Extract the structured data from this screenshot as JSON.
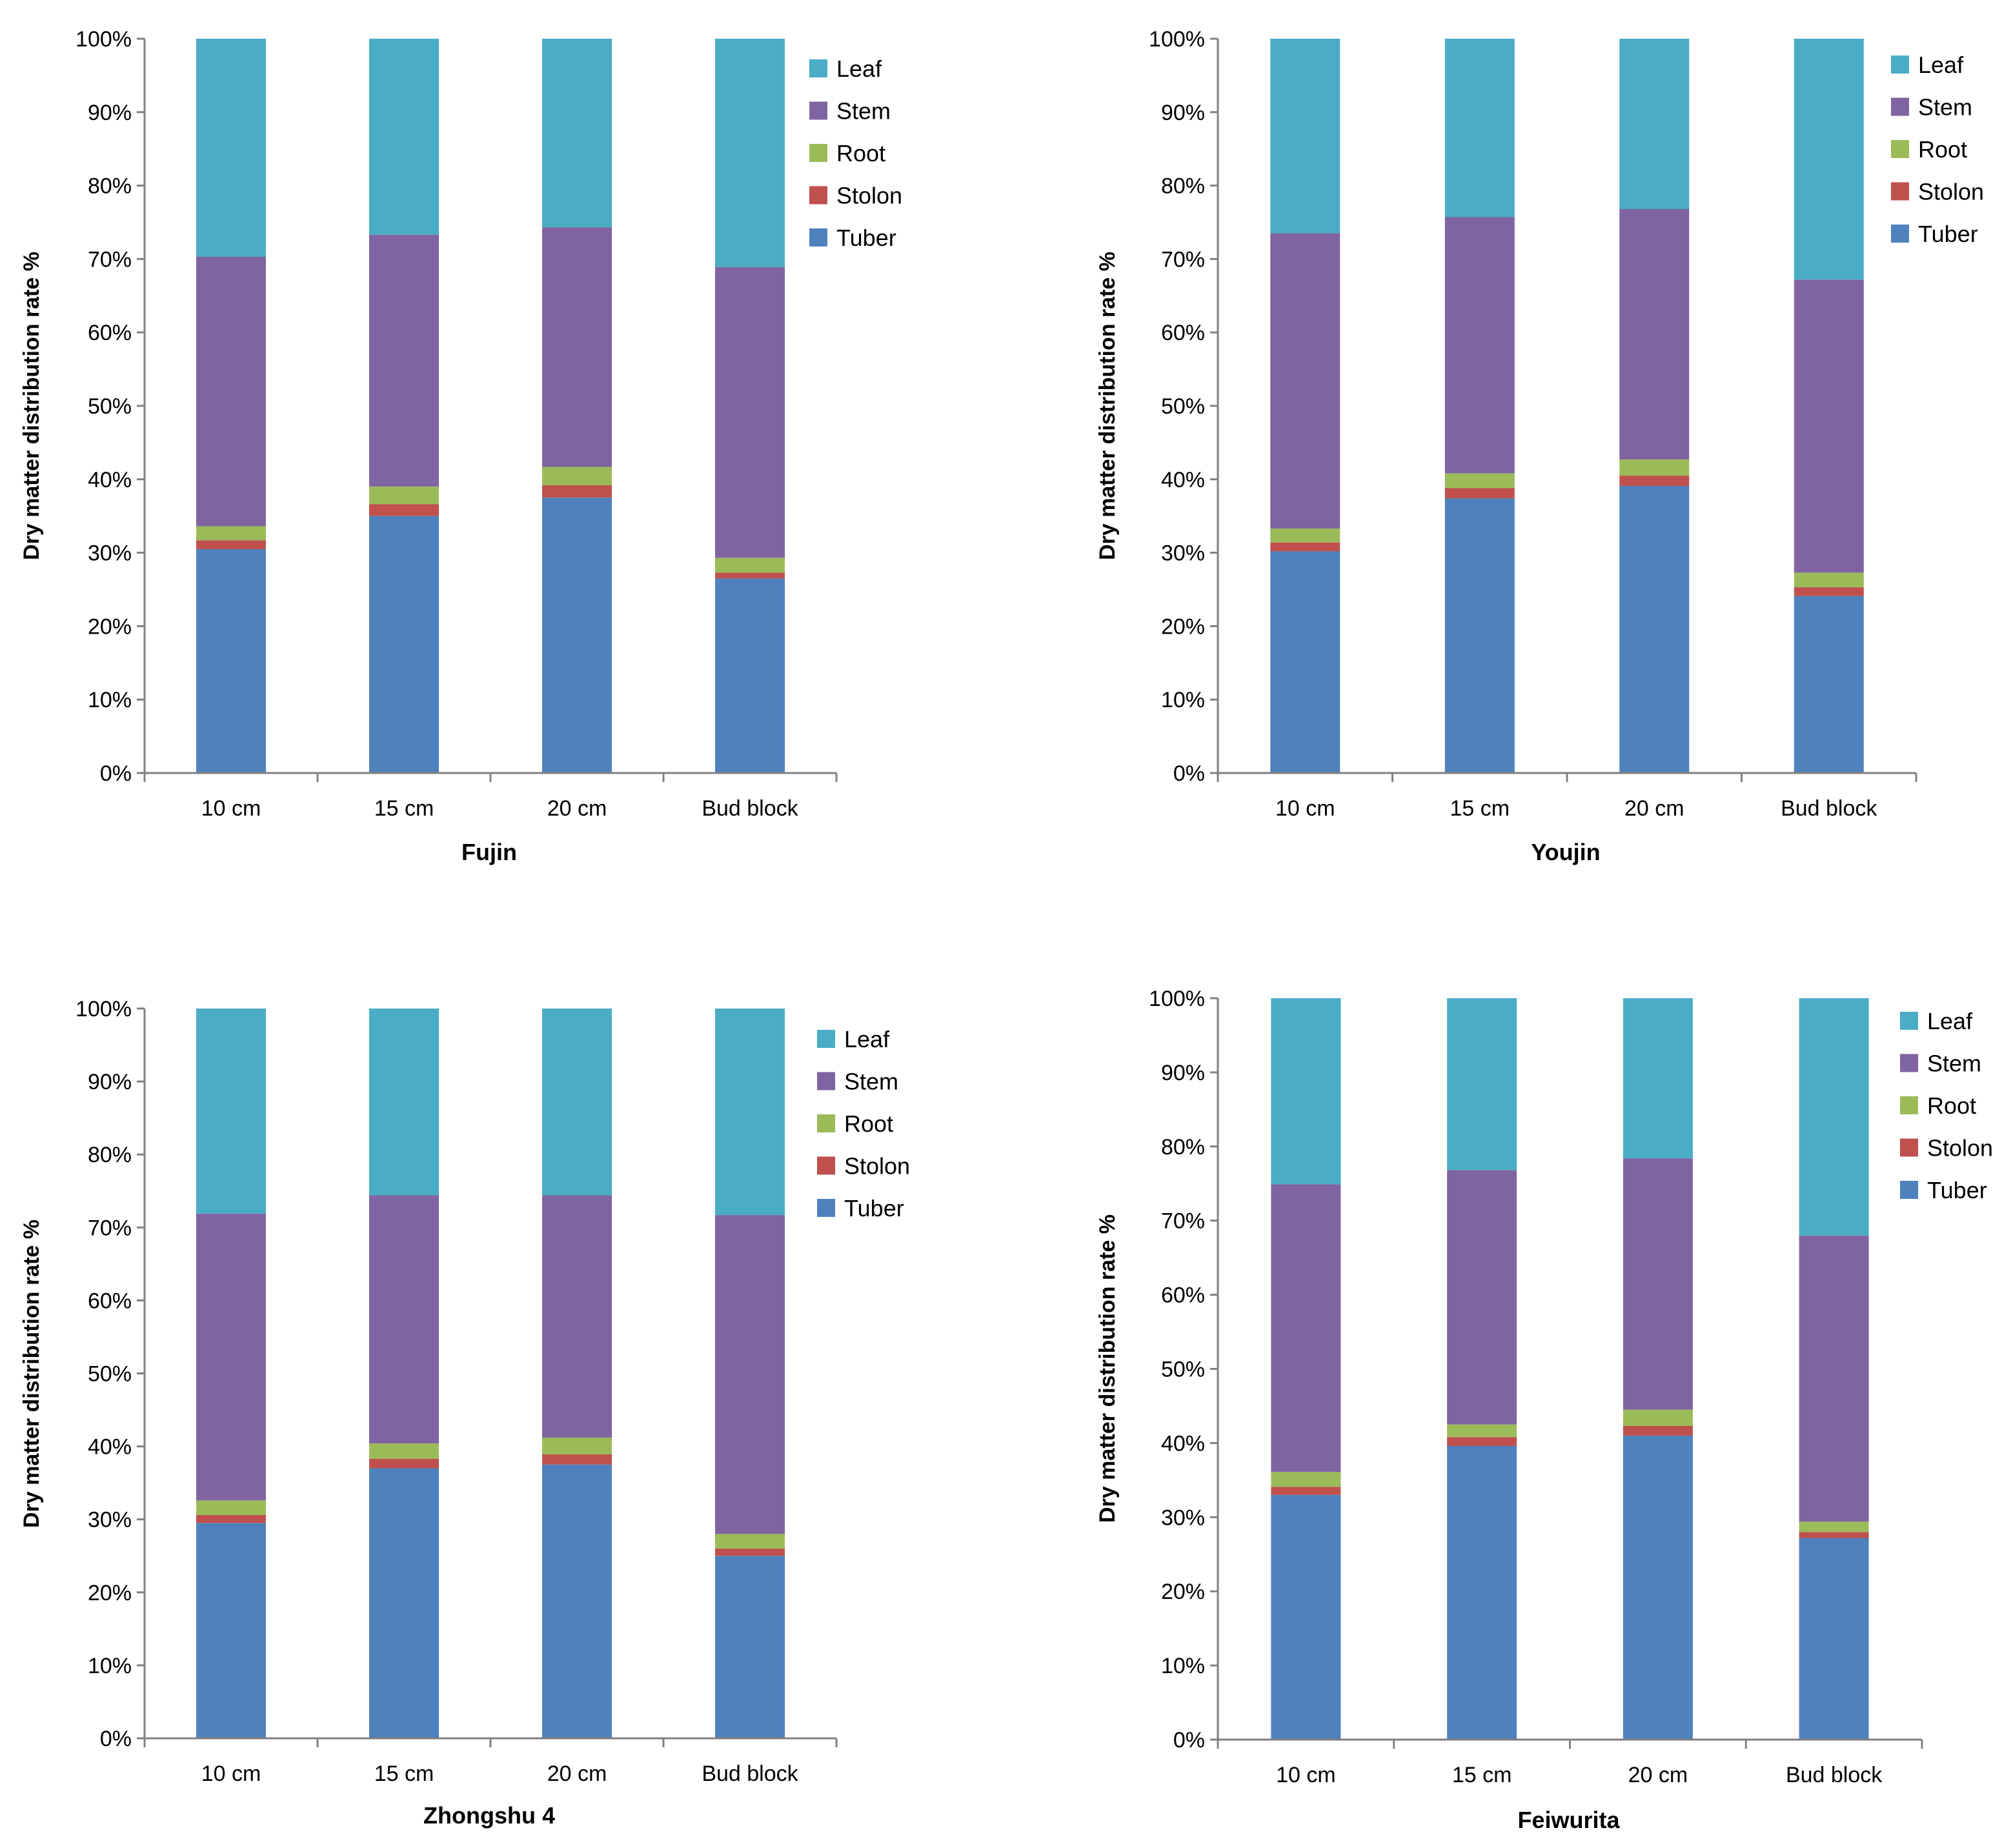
{
  "colors": {
    "Tuber": "#4f81bd",
    "Stolon": "#c0504d",
    "Root": "#9bbb59",
    "Stem": "#8064a2",
    "Leaf": "#4bacc6",
    "axis": "#808080"
  },
  "chart_data": [
    {
      "type": "bar",
      "stacked": true,
      "title": "Fujin",
      "xlabel": "Fujin",
      "ylabel": "Dry matter distribution rate %",
      "categories": [
        "10 cm",
        "15 cm",
        "20 cm",
        "Bud block"
      ],
      "yticks": [
        "0%",
        "10%",
        "20%",
        "30%",
        "40%",
        "50%",
        "60%",
        "70%",
        "80%",
        "90%",
        "100%"
      ],
      "ylim": [
        0,
        100
      ],
      "legend_position": "top-right",
      "legend_order": [
        "Leaf",
        "Stem",
        "Root",
        "Stolon",
        "Tuber"
      ],
      "series": [
        {
          "name": "Tuber",
          "values": [
            30.5,
            35.0,
            37.5,
            26.5
          ]
        },
        {
          "name": "Stolon",
          "values": [
            1.2,
            1.6,
            1.7,
            0.8
          ]
        },
        {
          "name": "Root",
          "values": [
            1.9,
            2.4,
            2.5,
            2.0
          ]
        },
        {
          "name": "Stem",
          "values": [
            36.7,
            34.3,
            32.6,
            39.6
          ]
        },
        {
          "name": "Leaf",
          "values": [
            29.7,
            26.7,
            25.7,
            31.1
          ]
        }
      ]
    },
    {
      "type": "bar",
      "stacked": true,
      "title": "Youjin",
      "xlabel": "Youjin",
      "ylabel": "Dry matter distribution rate %",
      "categories": [
        "10 cm",
        "15 cm",
        "20 cm",
        "Bud block"
      ],
      "yticks": [
        "0%",
        "10%",
        "20%",
        "30%",
        "40%",
        "50%",
        "60%",
        "70%",
        "80%",
        "90%",
        "100%"
      ],
      "ylim": [
        0,
        100
      ],
      "legend_position": "top-right",
      "legend_order": [
        "Leaf",
        "Stem",
        "Root",
        "Stolon",
        "Tuber"
      ],
      "series": [
        {
          "name": "Tuber",
          "values": [
            30.2,
            37.4,
            39.1,
            24.1
          ]
        },
        {
          "name": "Stolon",
          "values": [
            1.2,
            1.4,
            1.4,
            1.2
          ]
        },
        {
          "name": "Root",
          "values": [
            1.9,
            2.0,
            2.2,
            2.0
          ]
        },
        {
          "name": "Stem",
          "values": [
            40.2,
            34.9,
            34.1,
            39.9
          ]
        },
        {
          "name": "Leaf",
          "values": [
            26.5,
            24.3,
            23.2,
            32.8
          ]
        }
      ]
    },
    {
      "type": "bar",
      "stacked": true,
      "title": "Zhongshu 4",
      "xlabel": "Zhongshu 4",
      "ylabel": "Dry matter distribution rate %",
      "categories": [
        "10 cm",
        "15 cm",
        "20 cm",
        "Bud block"
      ],
      "yticks": [
        "0%",
        "10%",
        "20%",
        "30%",
        "40%",
        "50%",
        "60%",
        "70%",
        "80%",
        "90%",
        "100%"
      ],
      "ylim": [
        0,
        100
      ],
      "legend_position": "top-right",
      "legend_order": [
        "Leaf",
        "Stem",
        "Root",
        "Stolon",
        "Tuber"
      ],
      "series": [
        {
          "name": "Tuber",
          "values": [
            29.5,
            37.0,
            37.5,
            25.0
          ]
        },
        {
          "name": "Stolon",
          "values": [
            1.1,
            1.3,
            1.4,
            1.0
          ]
        },
        {
          "name": "Root",
          "values": [
            2.0,
            2.1,
            2.3,
            2.0
          ]
        },
        {
          "name": "Stem",
          "values": [
            39.3,
            34.0,
            33.2,
            43.7
          ]
        },
        {
          "name": "Leaf",
          "values": [
            28.1,
            25.6,
            25.6,
            28.3
          ]
        }
      ]
    },
    {
      "type": "bar",
      "stacked": true,
      "title": "Feiwurita",
      "xlabel": "Feiwurita",
      "ylabel": "Dry matter distribution rate %",
      "categories": [
        "10 cm",
        "15 cm",
        "20 cm",
        "Bud block"
      ],
      "yticks": [
        "0%",
        "10%",
        "20%",
        "30%",
        "40%",
        "50%",
        "60%",
        "70%",
        "80%",
        "90%",
        "100%"
      ],
      "ylim": [
        0,
        100
      ],
      "legend_position": "top-right",
      "legend_order": [
        "Leaf",
        "Stem",
        "Root",
        "Stolon",
        "Tuber"
      ],
      "series": [
        {
          "name": "Tuber",
          "values": [
            33.0,
            39.6,
            41.0,
            27.2
          ]
        },
        {
          "name": "Stolon",
          "values": [
            1.1,
            1.2,
            1.3,
            0.8
          ]
        },
        {
          "name": "Root",
          "values": [
            2.0,
            1.7,
            2.2,
            1.4
          ]
        },
        {
          "name": "Stem",
          "values": [
            38.8,
            34.3,
            33.9,
            38.6
          ]
        },
        {
          "name": "Leaf",
          "values": [
            25.1,
            23.2,
            21.6,
            32.0
          ]
        }
      ]
    }
  ]
}
